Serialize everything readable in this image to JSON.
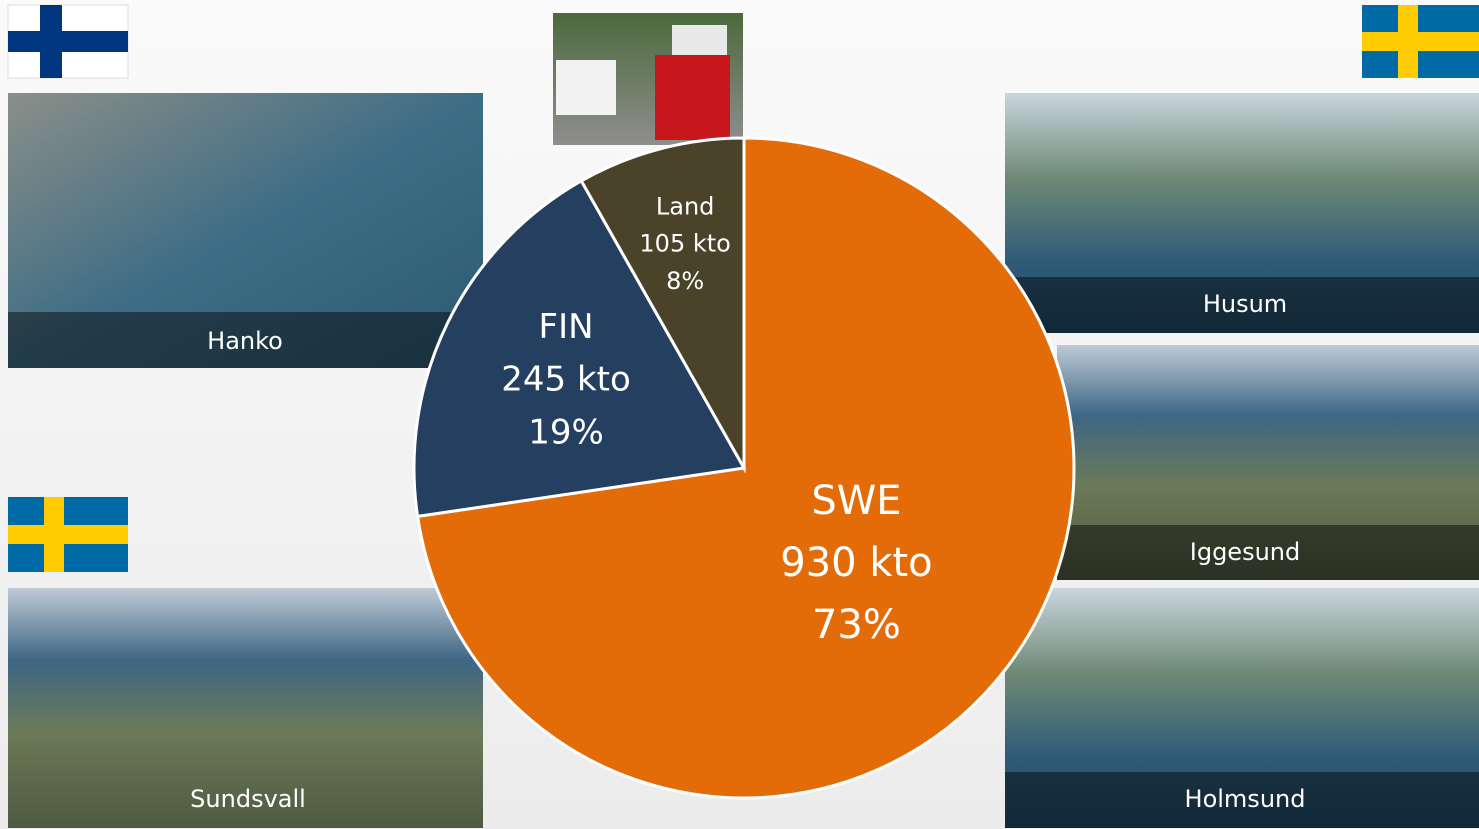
{
  "chart_data": {
    "type": "pie",
    "categories": [
      "SWE",
      "FIN",
      "Land"
    ],
    "values": [
      930,
      245,
      105
    ],
    "value_labels": [
      "930 kto",
      "245 kto",
      "105 kto"
    ],
    "percents": [
      73,
      19,
      8
    ],
    "percent_labels": [
      "73%",
      "19%",
      "8%"
    ],
    "colors": [
      "#e36c09",
      "#243f60",
      "#4a4229"
    ]
  },
  "photos": [
    {
      "label": "Hanko"
    },
    {
      "label": "Husum"
    },
    {
      "label": "Iggesund"
    },
    {
      "label": "Holmsund"
    },
    {
      "label": "Sundsvall"
    }
  ]
}
